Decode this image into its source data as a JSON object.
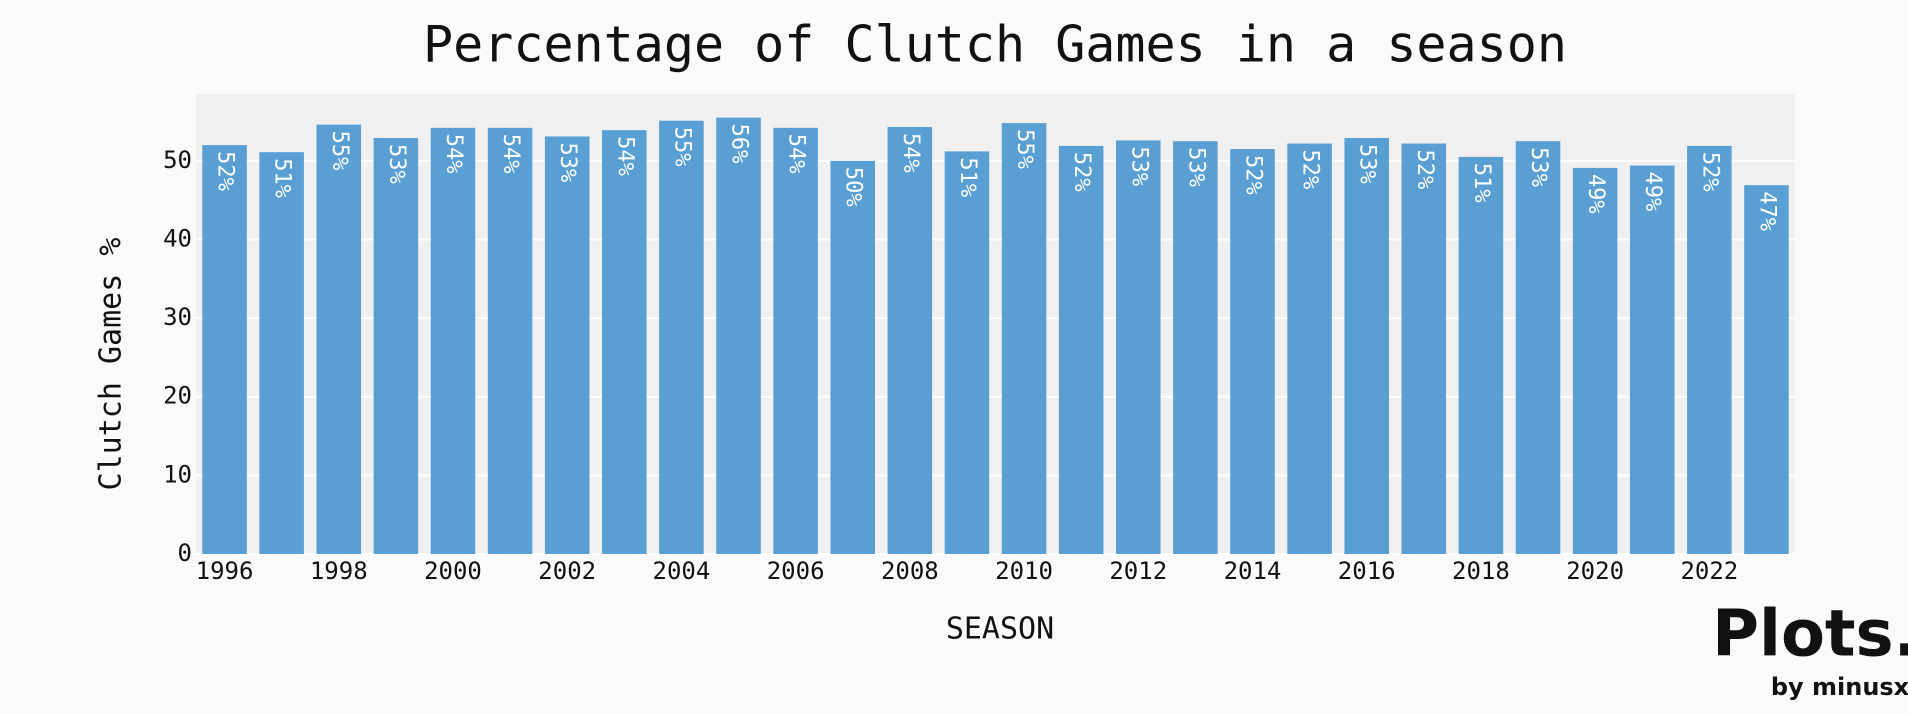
{
  "chart_data": {
    "type": "bar",
    "title": "Percentage of Clutch Games in a season",
    "x_label": "SEASON",
    "y_label": "Clutch Games %",
    "x": [
      1996,
      1997,
      1998,
      1999,
      2000,
      2001,
      2002,
      2003,
      2004,
      2005,
      2006,
      2007,
      2008,
      2009,
      2010,
      2011,
      2012,
      2013,
      2014,
      2015,
      2016,
      2017,
      2018,
      2019,
      2020,
      2021,
      2022,
      2023
    ],
    "values": [
      52.0,
      51.1,
      54.6,
      52.9,
      54.2,
      54.2,
      53.1,
      53.9,
      55.1,
      55.5,
      54.2,
      50.0,
      54.3,
      51.2,
      54.8,
      51.9,
      52.6,
      52.5,
      51.5,
      52.2,
      52.9,
      52.2,
      50.5,
      52.5,
      49.1,
      49.4,
      51.9,
      46.9
    ],
    "value_labels": [
      "52%",
      "51%",
      "55%",
      "53%",
      "54%",
      "54%",
      "53%",
      "54%",
      "55%",
      "56%",
      "54%",
      "50%",
      "54%",
      "51%",
      "55%",
      "52%",
      "53%",
      "53%",
      "52%",
      "52%",
      "53%",
      "52%",
      "51%",
      "53%",
      "49%",
      "49%",
      "52%",
      "47%"
    ],
    "color": "#5a9fd4",
    "xlim": [
      1995.5,
      2023.5
    ],
    "xticks": [
      1996,
      1998,
      2000,
      2002,
      2004,
      2006,
      2008,
      2010,
      2012,
      2014,
      2016,
      2018,
      2020,
      2022
    ],
    "ylim": [
      0,
      58.5
    ],
    "yticks": [
      0,
      10,
      20,
      30,
      40,
      50
    ],
    "grid": true
  },
  "branding": {
    "logo": "Plots.",
    "byline": "by minusx"
  }
}
